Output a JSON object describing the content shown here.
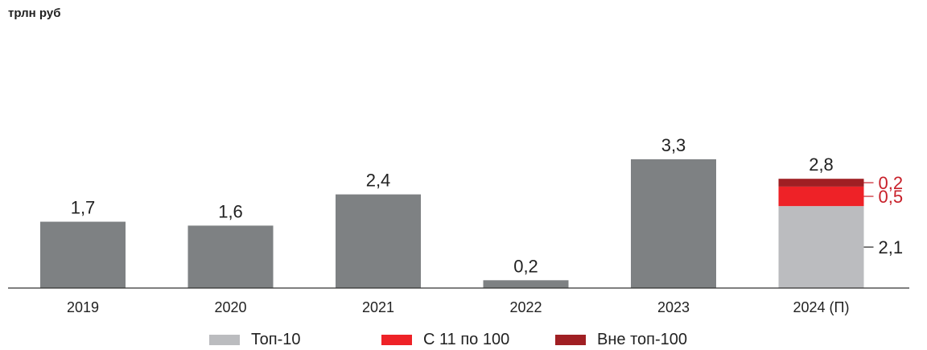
{
  "unit_label": "трлн руб",
  "colors": {
    "bar": "#7e8183",
    "top10": "#bbbcbf",
    "from11to100": "#ee2227",
    "outside100": "#a01f23",
    "annotation": "#c8202a",
    "axis": "#333333",
    "text": "#222222"
  },
  "chart_data": {
    "type": "bar",
    "stacked_last": true,
    "ylim": [
      0,
      3.5
    ],
    "grid": false,
    "legend_position": "bottom",
    "categories": [
      "2019",
      "2020",
      "2021",
      "2022",
      "2023",
      "2024 (П)"
    ],
    "totals": [
      1.7,
      1.6,
      2.4,
      0.2,
      3.3,
      2.8
    ],
    "total_labels": [
      "1,7",
      "1,6",
      "2,4",
      "0,2",
      "3,3",
      "2,8"
    ],
    "stack": {
      "category": "2024 (П)",
      "segments": [
        {
          "name": "Топ-10",
          "value": 2.1,
          "label": "2,1",
          "color_key": "top10"
        },
        {
          "name": "С 11 по 100",
          "value": 0.5,
          "label": "0,5",
          "color_key": "from11to100"
        },
        {
          "name": "Вне топ-100",
          "value": 0.2,
          "label": "0,2",
          "color_key": "outside100"
        }
      ]
    }
  },
  "legend": [
    {
      "label": "Топ-10",
      "color_key": "top10"
    },
    {
      "label": "С 11 по 100",
      "color_key": "from11to100"
    },
    {
      "label": "Вне топ-100",
      "color_key": "outside100"
    }
  ]
}
